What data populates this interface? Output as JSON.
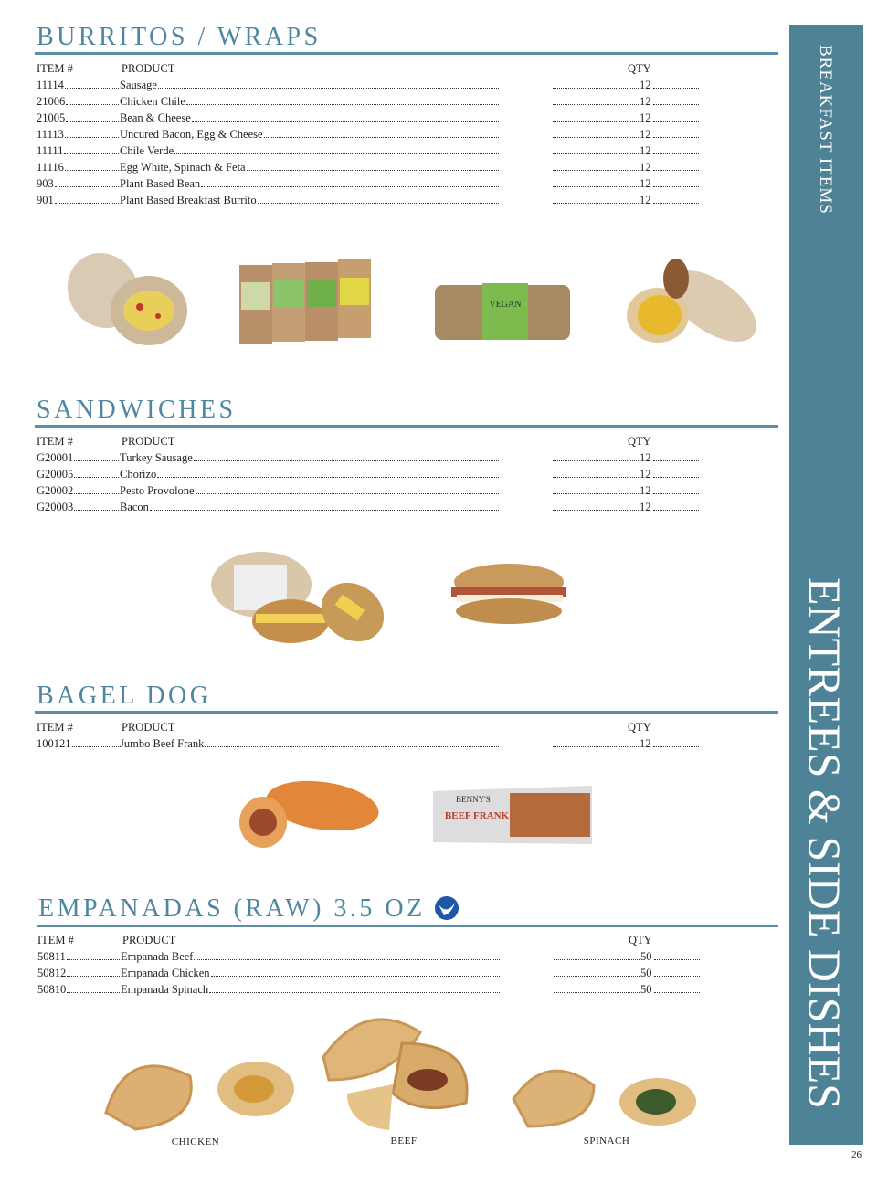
{
  "sidebar": {
    "top_label": "BREAKFAST ITEMS",
    "main_label": "ENTREES & SIDE DISHES",
    "color": "#4e8397"
  },
  "accent_color": "#4f87a0",
  "columns": {
    "item": "ITEM #",
    "product": "PRODUCT",
    "qty": "QTY"
  },
  "sections": [
    {
      "title": "BURRITOS / WRAPS",
      "rows": [
        {
          "item": "11114",
          "product": "Sausage",
          "qty": "12"
        },
        {
          "item": "21006",
          "product": "Chicken Chile",
          "qty": "12"
        },
        {
          "item": "21005",
          "product": "Bean & Cheese",
          "qty": "12"
        },
        {
          "item": "11113",
          "product": "Uncured Bacon, Egg & Cheese",
          "qty": "12"
        },
        {
          "item": "11111",
          "product": "Chile Verde",
          "qty": "12"
        },
        {
          "item": "11116",
          "product": "Egg White, Spinach & Feta",
          "qty": "12"
        },
        {
          "item": "903",
          "product": "Plant Based Bean",
          "qty": "12"
        },
        {
          "item": "901",
          "product": "Plant Based Breakfast Burrito",
          "qty": "12"
        }
      ]
    },
    {
      "title": "SANDWICHES",
      "rows": [
        {
          "item": "G20001",
          "product": "Turkey Sausage",
          "qty": "12"
        },
        {
          "item": "G20005",
          "product": "Chorizo",
          "qty": "12"
        },
        {
          "item": "G20002",
          "product": "Pesto Provolone",
          "qty": "12"
        },
        {
          "item": "G20003",
          "product": "Bacon",
          "qty": "12"
        }
      ]
    },
    {
      "title": "BAGEL DOG",
      "rows": [
        {
          "item": "100121",
          "product": "Jumbo Beef Frank",
          "qty": "12"
        }
      ]
    },
    {
      "title": "EMPANADAS (RAW) 3.5 OZ",
      "rows": [
        {
          "item": "50811",
          "product": "Empanada Beef",
          "qty": "50"
        },
        {
          "item": "50812",
          "product": "Empanada Chicken",
          "qty": "50"
        },
        {
          "item": "50810",
          "product": "Empanada Spinach",
          "qty": "50"
        }
      ]
    }
  ],
  "product_labels": {
    "vegan_wrap": "VEGAN",
    "beef_frank_brand": "BENNY'S",
    "beef_frank": "BEEF FRANK",
    "empanada_logo": "WHITE TOQUE"
  },
  "captions": {
    "chicken": "CHICKEN",
    "beef": "BEEF",
    "spinach": "SPINACH"
  },
  "page_number": "26"
}
